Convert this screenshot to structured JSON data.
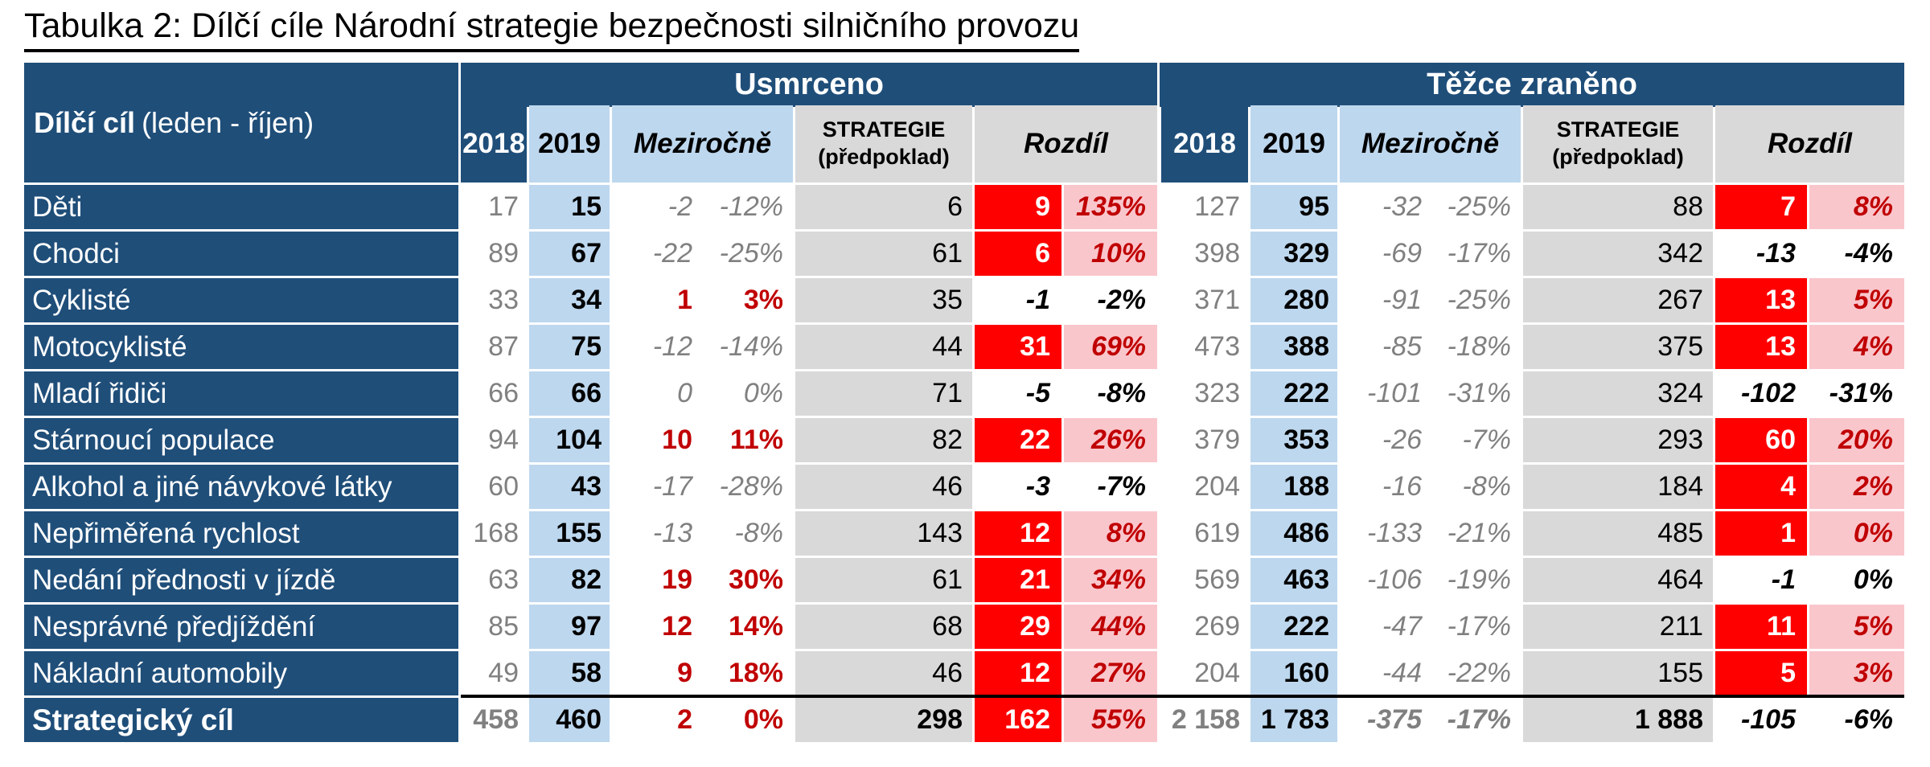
{
  "title": "Tabulka 2: Dílčí cíle Národní strategie bezpečnosti silničního provozu",
  "colors": {
    "header_blue": "#1F4E79",
    "light_blue": "#BDD7EE",
    "gray": "#D9D9D9",
    "red": "#FF0000",
    "pink": "#F9C6CC",
    "dark_red_text": "#C00000",
    "gray_text": "#808080"
  },
  "table": {
    "corner": {
      "bold": "Dílčí cíl",
      "normal": "(leden - říjen)"
    },
    "sections": {
      "left": "Usmrceno",
      "right": "Těžce zraněno"
    },
    "subheaders": {
      "y2018": "2018",
      "y2019": "2019",
      "mezirocne": "Meziročně",
      "strategie_line1": "STRATEGIE",
      "strategie_line2": "(předpoklad)",
      "rozdil": "Rozdíl"
    },
    "rows": [
      {
        "label": "Děti",
        "total": false,
        "u": {
          "v2018": "17",
          "v2019": "15",
          "mz": [
            "-2",
            "-12%"
          ],
          "mz_style": "neg",
          "strat": "6",
          "diff": [
            "9",
            "135%"
          ],
          "diff_style": "pos"
        },
        "t": {
          "v2018": "127",
          "v2019": "95",
          "mz": [
            "-32",
            "-25%"
          ],
          "mz_style": "neg",
          "strat": "88",
          "diff": [
            "7",
            "8%"
          ],
          "diff_style": "pos"
        }
      },
      {
        "label": "Chodci",
        "total": false,
        "u": {
          "v2018": "89",
          "v2019": "67",
          "mz": [
            "-22",
            "-25%"
          ],
          "mz_style": "neg",
          "strat": "61",
          "diff": [
            "6",
            "10%"
          ],
          "diff_style": "pos"
        },
        "t": {
          "v2018": "398",
          "v2019": "329",
          "mz": [
            "-69",
            "-17%"
          ],
          "mz_style": "neg",
          "strat": "342",
          "diff": [
            "-13",
            "-4%"
          ],
          "diff_style": "neg"
        }
      },
      {
        "label": "Cyklisté",
        "total": false,
        "u": {
          "v2018": "33",
          "v2019": "34",
          "mz": [
            "1",
            "3%"
          ],
          "mz_style": "pos",
          "strat": "35",
          "diff": [
            "-1",
            "-2%"
          ],
          "diff_style": "neg"
        },
        "t": {
          "v2018": "371",
          "v2019": "280",
          "mz": [
            "-91",
            "-25%"
          ],
          "mz_style": "neg",
          "strat": "267",
          "diff": [
            "13",
            "5%"
          ],
          "diff_style": "pos"
        }
      },
      {
        "label": "Motocyklisté",
        "total": false,
        "u": {
          "v2018": "87",
          "v2019": "75",
          "mz": [
            "-12",
            "-14%"
          ],
          "mz_style": "neg",
          "strat": "44",
          "diff": [
            "31",
            "69%"
          ],
          "diff_style": "pos"
        },
        "t": {
          "v2018": "473",
          "v2019": "388",
          "mz": [
            "-85",
            "-18%"
          ],
          "mz_style": "neg",
          "strat": "375",
          "diff": [
            "13",
            "4%"
          ],
          "diff_style": "pos"
        }
      },
      {
        "label": "Mladí řidiči",
        "total": false,
        "u": {
          "v2018": "66",
          "v2019": "66",
          "mz": [
            "0",
            "0%"
          ],
          "mz_style": "neg",
          "strat": "71",
          "diff": [
            "-5",
            "-8%"
          ],
          "diff_style": "neg"
        },
        "t": {
          "v2018": "323",
          "v2019": "222",
          "mz": [
            "-101",
            "-31%"
          ],
          "mz_style": "neg",
          "strat": "324",
          "diff": [
            "-102",
            "-31%"
          ],
          "diff_style": "neg"
        }
      },
      {
        "label": "Stárnoucí populace",
        "total": false,
        "u": {
          "v2018": "94",
          "v2019": "104",
          "mz": [
            "10",
            "11%"
          ],
          "mz_style": "pos",
          "strat": "82",
          "diff": [
            "22",
            "26%"
          ],
          "diff_style": "pos"
        },
        "t": {
          "v2018": "379",
          "v2019": "353",
          "mz": [
            "-26",
            "-7%"
          ],
          "mz_style": "neg",
          "strat": "293",
          "diff": [
            "60",
            "20%"
          ],
          "diff_style": "pos"
        }
      },
      {
        "label": "Alkohol a jiné návykové látky",
        "total": false,
        "u": {
          "v2018": "60",
          "v2019": "43",
          "mz": [
            "-17",
            "-28%"
          ],
          "mz_style": "neg",
          "strat": "46",
          "diff": [
            "-3",
            "-7%"
          ],
          "diff_style": "neg"
        },
        "t": {
          "v2018": "204",
          "v2019": "188",
          "mz": [
            "-16",
            "-8%"
          ],
          "mz_style": "neg",
          "strat": "184",
          "diff": [
            "4",
            "2%"
          ],
          "diff_style": "pos"
        }
      },
      {
        "label": "Nepřiměřená rychlost",
        "total": false,
        "u": {
          "v2018": "168",
          "v2019": "155",
          "mz": [
            "-13",
            "-8%"
          ],
          "mz_style": "neg",
          "strat": "143",
          "diff": [
            "12",
            "8%"
          ],
          "diff_style": "pos"
        },
        "t": {
          "v2018": "619",
          "v2019": "486",
          "mz": [
            "-133",
            "-21%"
          ],
          "mz_style": "neg",
          "strat": "485",
          "diff": [
            "1",
            "0%"
          ],
          "diff_style": "pos"
        }
      },
      {
        "label": "Nedání přednosti v jízdě",
        "total": false,
        "u": {
          "v2018": "63",
          "v2019": "82",
          "mz": [
            "19",
            "30%"
          ],
          "mz_style": "pos",
          "strat": "61",
          "diff": [
            "21",
            "34%"
          ],
          "diff_style": "pos"
        },
        "t": {
          "v2018": "569",
          "v2019": "463",
          "mz": [
            "-106",
            "-19%"
          ],
          "mz_style": "neg",
          "strat": "464",
          "diff": [
            "-1",
            "0%"
          ],
          "diff_style": "neg"
        }
      },
      {
        "label": "Nesprávné předjíždění",
        "total": false,
        "u": {
          "v2018": "85",
          "v2019": "97",
          "mz": [
            "12",
            "14%"
          ],
          "mz_style": "pos",
          "strat": "68",
          "diff": [
            "29",
            "44%"
          ],
          "diff_style": "pos"
        },
        "t": {
          "v2018": "269",
          "v2019": "222",
          "mz": [
            "-47",
            "-17%"
          ],
          "mz_style": "neg",
          "strat": "211",
          "diff": [
            "11",
            "5%"
          ],
          "diff_style": "pos"
        }
      },
      {
        "label": "Nákladní automobily",
        "total": false,
        "u": {
          "v2018": "49",
          "v2019": "58",
          "mz": [
            "9",
            "18%"
          ],
          "mz_style": "pos",
          "strat": "46",
          "diff": [
            "12",
            "27%"
          ],
          "diff_style": "pos"
        },
        "t": {
          "v2018": "204",
          "v2019": "160",
          "mz": [
            "-44",
            "-22%"
          ],
          "mz_style": "neg",
          "strat": "155",
          "diff": [
            "5",
            "3%"
          ],
          "diff_style": "pos"
        }
      },
      {
        "label": "Strategický cíl",
        "total": true,
        "u": {
          "v2018": "458",
          "v2019": "460",
          "mz": [
            "2",
            "0%"
          ],
          "mz_style": "pos",
          "strat": "298",
          "diff": [
            "162",
            "55%"
          ],
          "diff_style": "pos"
        },
        "t": {
          "v2018": "2 158",
          "v2019": "1 783",
          "mz": [
            "-375",
            "-17%"
          ],
          "mz_style": "neg",
          "strat": "1 888",
          "diff": [
            "-105",
            "-6%"
          ],
          "diff_style": "neg"
        }
      }
    ]
  }
}
